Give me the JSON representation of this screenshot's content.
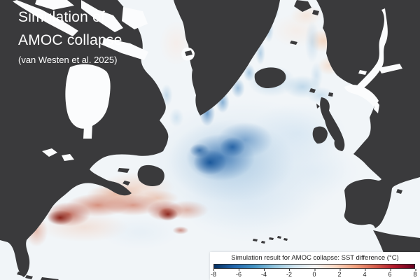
{
  "map_title": {
    "line1": "Simulation of",
    "line2": "AMOC collapse",
    "citation": "(van Westen et al. 2025)"
  },
  "colorbar": {
    "label": "Simulation result for AMOC collapse: SST difference (°C)",
    "tick_labels": [
      "-8",
      "-6",
      "-4",
      "-2",
      "0",
      "2",
      "4",
      "6",
      "8"
    ],
    "min": -8,
    "max": 8,
    "units": "°C"
  },
  "colors": {
    "land": "#3a3a3c",
    "ocean_neutral": "#f1f5f8",
    "cold_extreme": "#053061",
    "neutral_center": "#f7f7f7",
    "warm_extreme": "#67001f"
  }
}
